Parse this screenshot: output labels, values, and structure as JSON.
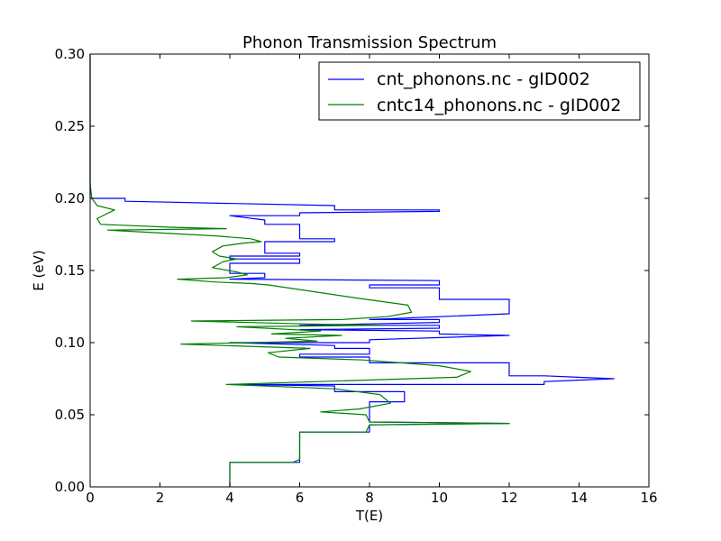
{
  "chart_data": {
    "type": "line",
    "title": "Phonon Transmission Spectrum",
    "xlabel": "T(E)",
    "ylabel": "E (eV)",
    "xlim": [
      0,
      16
    ],
    "ylim": [
      0,
      0.3
    ],
    "x_ticks": [
      "0",
      "2",
      "4",
      "6",
      "8",
      "10",
      "12",
      "14",
      "16"
    ],
    "y_ticks": [
      "0.00",
      "0.05",
      "0.10",
      "0.15",
      "0.20",
      "0.25",
      "0.30"
    ],
    "legend_position": "top-right",
    "series": [
      {
        "name": "cnt_phonons.nc - gID002",
        "color": "#0000ff",
        "points": [
          [
            4,
            0
          ],
          [
            4,
            0.017
          ],
          [
            6,
            0.017
          ],
          [
            6,
            0.019
          ],
          [
            6,
            0.029
          ],
          [
            6,
            0.038
          ],
          [
            8,
            0.038
          ],
          [
            8,
            0.043
          ],
          [
            12,
            0.044
          ],
          [
            8,
            0.045
          ],
          [
            8,
            0.059
          ],
          [
            9,
            0.059
          ],
          [
            9,
            0.066
          ],
          [
            7,
            0.066
          ],
          [
            7,
            0.07
          ],
          [
            4,
            0.071
          ],
          [
            13,
            0.071
          ],
          [
            13,
            0.073
          ],
          [
            15,
            0.075
          ],
          [
            13,
            0.077
          ],
          [
            12,
            0.077
          ],
          [
            12,
            0.086
          ],
          [
            8,
            0.086
          ],
          [
            8,
            0.09
          ],
          [
            6,
            0.09
          ],
          [
            6,
            0.092
          ],
          [
            8,
            0.092
          ],
          [
            8,
            0.096
          ],
          [
            7,
            0.096
          ],
          [
            7,
            0.098
          ],
          [
            4,
            0.1
          ],
          [
            8,
            0.1
          ],
          [
            8,
            0.102
          ],
          [
            12,
            0.105
          ],
          [
            10,
            0.106
          ],
          [
            10,
            0.108
          ],
          [
            6,
            0.109
          ],
          [
            10,
            0.11
          ],
          [
            10,
            0.112
          ],
          [
            6,
            0.112
          ],
          [
            10,
            0.114
          ],
          [
            10,
            0.116
          ],
          [
            8,
            0.116
          ],
          [
            12,
            0.12
          ],
          [
            12,
            0.13
          ],
          [
            10,
            0.13
          ],
          [
            10,
            0.138
          ],
          [
            8,
            0.138
          ],
          [
            8,
            0.14
          ],
          [
            10,
            0.14
          ],
          [
            10,
            0.143
          ],
          [
            4,
            0.144
          ],
          [
            5,
            0.145
          ],
          [
            5,
            0.148
          ],
          [
            4,
            0.148
          ],
          [
            4,
            0.155
          ],
          [
            6,
            0.155
          ],
          [
            6,
            0.158
          ],
          [
            4,
            0.158
          ],
          [
            4,
            0.16
          ],
          [
            6,
            0.16
          ],
          [
            6,
            0.162
          ],
          [
            5,
            0.162
          ],
          [
            5,
            0.17
          ],
          [
            7,
            0.17
          ],
          [
            7,
            0.172
          ],
          [
            6,
            0.172
          ],
          [
            6,
            0.182
          ],
          [
            5,
            0.182
          ],
          [
            5,
            0.185
          ],
          [
            4,
            0.188
          ],
          [
            6,
            0.188
          ],
          [
            6,
            0.19
          ],
          [
            10,
            0.191
          ],
          [
            10,
            0.192
          ],
          [
            7,
            0.192
          ],
          [
            7,
            0.195
          ],
          [
            1,
            0.198
          ],
          [
            1,
            0.2
          ],
          [
            0,
            0.2
          ],
          [
            0,
            0.3
          ]
        ]
      },
      {
        "name": "cntc14_phonons.nc - gID002",
        "color": "#008000",
        "points": [
          [
            4,
            0
          ],
          [
            4,
            0.017
          ],
          [
            5.8,
            0.017
          ],
          [
            6,
            0.019
          ],
          [
            6,
            0.038
          ],
          [
            7.9,
            0.038
          ],
          [
            8,
            0.043
          ],
          [
            12,
            0.044
          ],
          [
            8,
            0.045
          ],
          [
            7.9,
            0.05
          ],
          [
            6.6,
            0.052
          ],
          [
            7.7,
            0.054
          ],
          [
            8.6,
            0.058
          ],
          [
            8.3,
            0.064
          ],
          [
            7,
            0.068
          ],
          [
            3.9,
            0.071
          ],
          [
            10.5,
            0.076
          ],
          [
            10.9,
            0.08
          ],
          [
            10,
            0.084
          ],
          [
            7.8,
            0.088
          ],
          [
            5.4,
            0.09
          ],
          [
            5.1,
            0.093
          ],
          [
            6.3,
            0.096
          ],
          [
            2.6,
            0.099
          ],
          [
            6.5,
            0.101
          ],
          [
            5.6,
            0.103
          ],
          [
            7.2,
            0.105
          ],
          [
            5.2,
            0.106
          ],
          [
            6.6,
            0.108
          ],
          [
            4.2,
            0.111
          ],
          [
            8.3,
            0.112
          ],
          [
            6.1,
            0.113
          ],
          [
            2.9,
            0.115
          ],
          [
            7.2,
            0.116
          ],
          [
            8.5,
            0.118
          ],
          [
            9.2,
            0.121
          ],
          [
            9.1,
            0.126
          ],
          [
            7.6,
            0.131
          ],
          [
            5.1,
            0.14
          ],
          [
            4.6,
            0.141
          ],
          [
            3.6,
            0.142
          ],
          [
            2.5,
            0.144
          ],
          [
            3.9,
            0.145
          ],
          [
            4.5,
            0.147
          ],
          [
            4.2,
            0.149
          ],
          [
            3.5,
            0.152
          ],
          [
            3.8,
            0.156
          ],
          [
            4.2,
            0.158
          ],
          [
            3.7,
            0.16
          ],
          [
            3.5,
            0.163
          ],
          [
            3.8,
            0.167
          ],
          [
            4.4,
            0.169
          ],
          [
            4.9,
            0.17
          ],
          [
            4.6,
            0.172
          ],
          [
            3.6,
            0.174
          ],
          [
            0.5,
            0.178
          ],
          [
            3.9,
            0.179
          ],
          [
            2.3,
            0.18
          ],
          [
            0.3,
            0.182
          ],
          [
            0.2,
            0.186
          ],
          [
            0.7,
            0.192
          ],
          [
            0.2,
            0.195
          ],
          [
            0.05,
            0.2
          ],
          [
            0,
            0.21
          ],
          [
            0,
            0.3
          ]
        ]
      }
    ]
  }
}
